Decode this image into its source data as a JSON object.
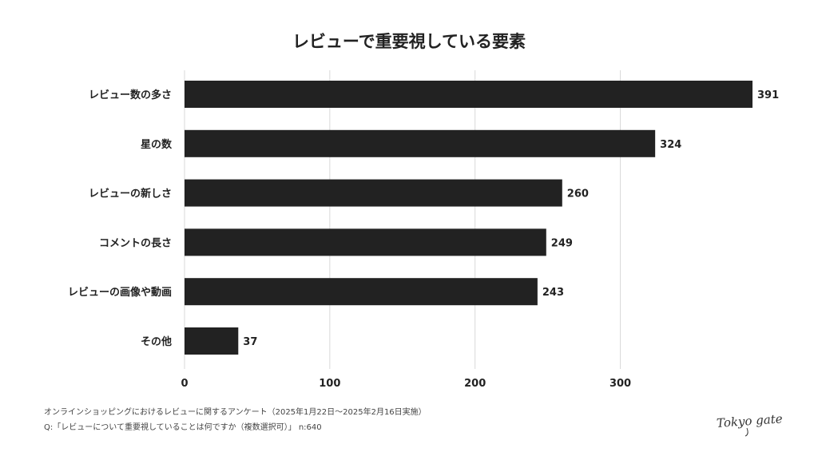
{
  "title": "レビューで重要視している要素",
  "chart_data": {
    "type": "bar",
    "orientation": "horizontal",
    "title": "レビューで重要視している要素",
    "categories": [
      "レビュー数の多さ",
      "星の数",
      "レビューの新しさ",
      "コメントの長さ",
      "レビューの画像や動画",
      "その他"
    ],
    "values": [
      391,
      324,
      260,
      249,
      243,
      37
    ],
    "xlim": [
      0,
      391
    ],
    "xticks": [
      0,
      100,
      200,
      300
    ],
    "grid": true,
    "bar_color": "#222222",
    "xlabel": "",
    "ylabel": ""
  },
  "footnotes": {
    "survey": "オンラインショッピングにおけるレビューに関するアンケート（2025年1月22日〜2025年2月16日実施）",
    "question": "Q:「レビューについて重要視していることは何ですか（複数選択可）」 n:640"
  },
  "logo": {
    "text": "Tokyo gate",
    "icon": "tokyo-gate-logo-icon"
  }
}
